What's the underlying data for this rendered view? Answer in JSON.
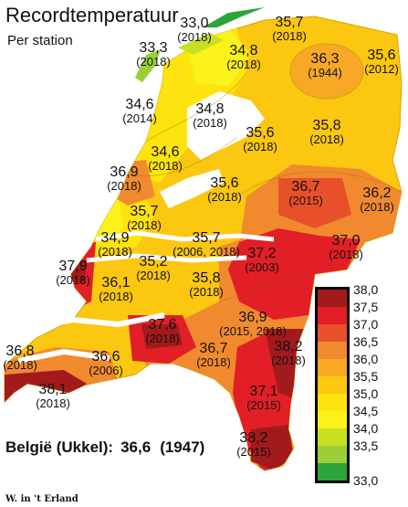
{
  "title": "Recordtemperatuur",
  "subtitle": "Per station",
  "stations": [
    {
      "temp": "33,0",
      "year": "(2018)"
    },
    {
      "temp": "33,3",
      "year": "(2018)"
    },
    {
      "temp": "35,7",
      "year": "(2018)"
    },
    {
      "temp": "34,8",
      "year": "(2018)"
    },
    {
      "temp": "36,3",
      "year": "(1944)"
    },
    {
      "temp": "35,6",
      "year": "(2012)"
    },
    {
      "temp": "34,6",
      "year": "(2014)"
    },
    {
      "temp": "34,8",
      "year": "(2018)"
    },
    {
      "temp": "35,6",
      "year": "(2018)"
    },
    {
      "temp": "35,8",
      "year": "(2018)"
    },
    {
      "temp": "34,6",
      "year": "(2018)"
    },
    {
      "temp": "36,9",
      "year": "(2018)"
    },
    {
      "temp": "35,6",
      "year": "(2018)"
    },
    {
      "temp": "36,7",
      "year": "(2015)"
    },
    {
      "temp": "36,2",
      "year": "(2018)"
    },
    {
      "temp": "35,7",
      "year": "(2018)"
    },
    {
      "temp": "34,9",
      "year": "(2018)"
    },
    {
      "temp": "35,7",
      "year": "(2006, 2018)"
    },
    {
      "temp": "37,2",
      "year": "(2003)"
    },
    {
      "temp": "37,0",
      "year": "(2018)"
    },
    {
      "temp": "37,9",
      "year": "(2018)"
    },
    {
      "temp": "35,2",
      "year": "(2018)"
    },
    {
      "temp": "36,1",
      "year": "(2018)"
    },
    {
      "temp": "35,8",
      "year": "(2018)"
    },
    {
      "temp": "36,9",
      "year": "(2015, 2018)"
    },
    {
      "temp": "37,6",
      "year": "(2018)"
    },
    {
      "temp": "38,2",
      "year": "(2018)"
    },
    {
      "temp": "36,7",
      "year": "(2018)"
    },
    {
      "temp": "36,8",
      "year": "(2018)"
    },
    {
      "temp": "36,6",
      "year": "(2006)"
    },
    {
      "temp": "37,1",
      "year": "(2015)"
    },
    {
      "temp": "38,1",
      "year": "(2018)"
    },
    {
      "temp": "38,2",
      "year": "(2015)"
    }
  ],
  "legend": {
    "labels": [
      "38,0",
      "37,5",
      "37,0",
      "36,5",
      "36,0",
      "35,5",
      "35,0",
      "34,5",
      "34,0",
      "33,5",
      "33,0"
    ],
    "colors": [
      "#a31a1d",
      "#e21f26",
      "#e8502a",
      "#f18a2f",
      "#f7a926",
      "#fbc710",
      "#fde40e",
      "#fbf219",
      "#c8e021",
      "#9bcf36",
      "#2ca53a"
    ]
  },
  "belgie": {
    "label": "België (Ukkel):",
    "value": "36,6",
    "year": "(1947)"
  },
  "credit": "W. in 't Erland"
}
